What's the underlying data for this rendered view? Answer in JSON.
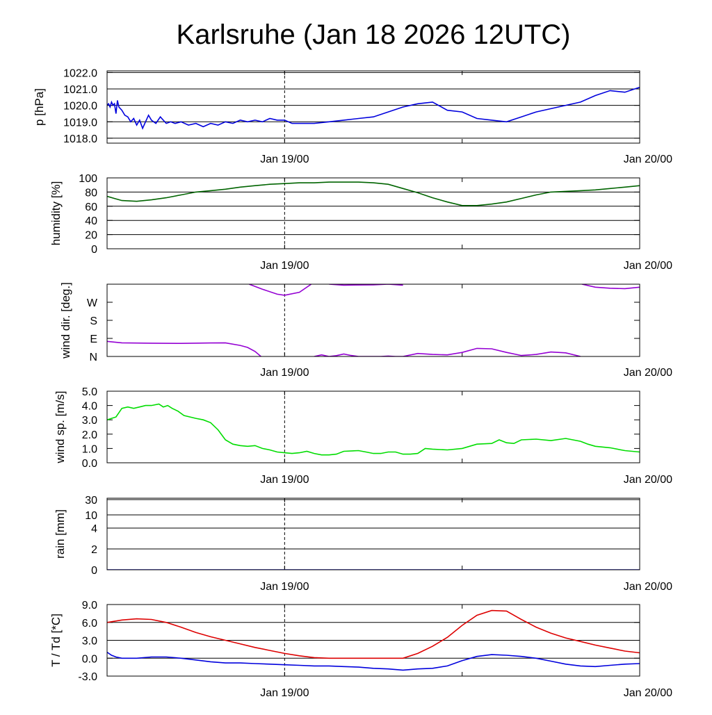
{
  "title": "Karlsruhe (Jan 18 2026 12UTC)",
  "time_axis": {
    "labels": [
      "Jan 19/00",
      "Jan 20/00"
    ],
    "range_hours": [
      0,
      36
    ],
    "label_hours": [
      12,
      36
    ],
    "dashed_marker_hour": 12,
    "minor_tick_hours": [
      24
    ]
  },
  "chart_data": [
    {
      "type": "line",
      "id": "pressure",
      "ylabel": "p [hPa]",
      "ylim": [
        1017.7,
        1022.1
      ],
      "yticks": [
        1018.0,
        1019.0,
        1020.0,
        1021.0,
        1022.0
      ],
      "ytick_labels": [
        "1018.0",
        "1019.0",
        "1020.0",
        "1021.0",
        "1022.0"
      ],
      "grid": true,
      "series": [
        {
          "color": "#0000dd",
          "x": [
            0,
            0.1,
            0.2,
            0.3,
            0.4,
            0.5,
            0.6,
            0.7,
            0.8,
            1.0,
            1.2,
            1.4,
            1.6,
            1.8,
            2.0,
            2.2,
            2.4,
            2.6,
            2.8,
            3.0,
            3.3,
            3.6,
            4.0,
            4.3,
            4.6,
            5.0,
            5.5,
            6.0,
            6.5,
            7.0,
            7.5,
            8.0,
            8.5,
            9.0,
            9.5,
            10.0,
            10.5,
            11.0,
            11.5,
            12.0,
            12.5,
            13.0,
            14.0,
            15.0,
            16.0,
            17.0,
            18.0,
            19.0,
            20.0,
            21.0,
            22.0,
            23.0,
            24.0,
            25.0,
            26.0,
            27.0,
            28.0,
            29.0,
            30.0,
            31.0,
            32.0,
            33.0,
            34.0,
            35.0,
            36.0
          ],
          "y": [
            1020.0,
            1020.1,
            1019.9,
            1020.2,
            1020.0,
            1020.1,
            1019.5,
            1020.3,
            1019.9,
            1019.7,
            1019.4,
            1019.3,
            1019.0,
            1019.2,
            1018.8,
            1019.1,
            1018.6,
            1019.0,
            1019.4,
            1019.1,
            1018.9,
            1019.3,
            1018.9,
            1019.0,
            1018.9,
            1019.0,
            1018.8,
            1018.9,
            1018.7,
            1018.9,
            1018.8,
            1019.0,
            1018.9,
            1019.1,
            1019.0,
            1019.1,
            1019.0,
            1019.2,
            1019.1,
            1019.1,
            1018.9,
            1018.9,
            1018.9,
            1019.0,
            1019.1,
            1019.2,
            1019.3,
            1019.6,
            1019.9,
            1020.1,
            1020.2,
            1019.7,
            1019.6,
            1019.2,
            1019.1,
            1019.0,
            1019.3,
            1019.6,
            1019.8,
            1020.0,
            1020.2,
            1020.6,
            1020.9,
            1020.8,
            1021.1
          ]
        }
      ]
    },
    {
      "type": "line",
      "id": "humidity",
      "ylabel": "humidity [%]",
      "ylim": [
        0,
        100
      ],
      "yticks": [
        0,
        20,
        40,
        60,
        80,
        100
      ],
      "ytick_labels": [
        "0",
        "20",
        "40",
        "60",
        "80",
        "100"
      ],
      "grid": true,
      "series": [
        {
          "color": "#006400",
          "x": [
            0,
            0.5,
            1,
            2,
            3,
            4,
            5,
            6,
            7,
            8,
            9,
            10,
            11,
            12,
            13,
            14,
            15,
            16,
            17,
            18,
            19,
            20,
            21,
            22,
            23,
            24,
            25,
            26,
            27,
            28,
            29,
            30,
            31,
            32,
            33,
            34,
            35,
            36
          ],
          "y": [
            74,
            71,
            68,
            67,
            69,
            72,
            76,
            80,
            82,
            84,
            87,
            89,
            91,
            92,
            93,
            93,
            94,
            94,
            94,
            93,
            91,
            85,
            79,
            72,
            66,
            61,
            61,
            63,
            66,
            71,
            76,
            80,
            81,
            82,
            83,
            85,
            87,
            89
          ]
        }
      ]
    },
    {
      "type": "line",
      "id": "wind_direction",
      "ylabel": "wind dir. [deg.]",
      "ylim": [
        0,
        360
      ],
      "yticks": [
        0,
        90,
        180,
        270
      ],
      "ytick_labels": [
        "N",
        "E",
        "S",
        "W"
      ],
      "grid": false,
      "series": [
        {
          "color": "#9400d3",
          "segments": [
            {
              "x": [
                0,
                1,
                3,
                5,
                7,
                8,
                9,
                9.5,
                10,
                10.4
              ],
              "y": [
                75,
                68,
                66,
                65,
                67,
                68,
                55,
                45,
                25,
                0
              ]
            },
            {
              "x": [
                9.6,
                10.5,
                11.5,
                12,
                13,
                13.8
              ],
              "y": [
                360,
                335,
                310,
                305,
                320,
                360
              ]
            },
            {
              "x": [
                15,
                16,
                18,
                19,
                20
              ],
              "y": [
                360,
                355,
                357,
                360,
                355
              ]
            },
            {
              "x": [
                14,
                14.5,
                15,
                15.5,
                16,
                16.5,
                17,
                18.5,
                19,
                19.5,
                20,
                21,
                22,
                23,
                24,
                25,
                26,
                27,
                28,
                29,
                30,
                31,
                32
              ],
              "y": [
                0,
                8,
                0,
                4,
                12,
                5,
                0,
                0,
                2,
                0,
                0,
                15,
                10,
                8,
                20,
                40,
                38,
                20,
                5,
                10,
                22,
                18,
                0
              ]
            },
            {
              "x": [
                32.1,
                33,
                34,
                35,
                36
              ],
              "y": [
                360,
                345,
                340,
                338,
                345
              ]
            }
          ]
        }
      ]
    },
    {
      "type": "line",
      "id": "wind_speed",
      "ylabel": "wind sp. [m/s]",
      "ylim": [
        0,
        5
      ],
      "yticks": [
        0,
        1,
        2,
        3,
        4,
        5
      ],
      "ytick_labels": [
        "0.0",
        "1.0",
        "2.0",
        "3.0",
        "4.0",
        "5.0"
      ],
      "grid": false,
      "series": [
        {
          "color": "#00dd00",
          "x": [
            0,
            0.3,
            0.6,
            0.8,
            1.0,
            1.4,
            1.8,
            2.2,
            2.6,
            3.0,
            3.5,
            3.8,
            4.1,
            4.4,
            4.8,
            5.2,
            6.0,
            6.5,
            7.0,
            7.5,
            8.0,
            8.5,
            9.0,
            9.5,
            10.0,
            10.5,
            11.0,
            11.5,
            12.0,
            12.5,
            13.0,
            13.5,
            14.0,
            14.5,
            15.0,
            15.5,
            16.0,
            17.0,
            17.5,
            18.0,
            18.5,
            19.0,
            19.5,
            20.0,
            20.5,
            21.0,
            21.5,
            22.0,
            23.0,
            24.0,
            25.0,
            26.0,
            26.5,
            27.0,
            27.5,
            28.0,
            29.0,
            30.0,
            31.0,
            32.0,
            32.5,
            33.0,
            34.0,
            35.0,
            36.0
          ],
          "y": [
            3.0,
            3.1,
            3.2,
            3.5,
            3.8,
            3.9,
            3.8,
            3.9,
            4.0,
            4.0,
            4.1,
            3.9,
            4.0,
            3.8,
            3.6,
            3.3,
            3.1,
            3.0,
            2.8,
            2.3,
            1.6,
            1.3,
            1.2,
            1.15,
            1.2,
            1.0,
            0.9,
            0.75,
            0.7,
            0.65,
            0.7,
            0.8,
            0.65,
            0.55,
            0.55,
            0.6,
            0.8,
            0.85,
            0.75,
            0.65,
            0.65,
            0.75,
            0.75,
            0.6,
            0.6,
            0.65,
            1.0,
            0.95,
            0.9,
            1.0,
            1.3,
            1.35,
            1.6,
            1.4,
            1.35,
            1.6,
            1.65,
            1.55,
            1.7,
            1.5,
            1.3,
            1.15,
            1.05,
            0.85,
            0.75
          ]
        }
      ]
    },
    {
      "type": "line",
      "id": "rain",
      "ylabel": "rain [mm]",
      "scale": "nonlinear",
      "yticks": [
        0,
        2,
        4,
        10,
        30
      ],
      "ytick_labels": [
        "0",
        "2",
        "4",
        "10",
        "30"
      ],
      "grid": true,
      "series": [
        {
          "color": "#0000dd",
          "x": [
            0,
            36
          ],
          "y": [
            0,
            0
          ]
        }
      ]
    },
    {
      "type": "line",
      "id": "temperature",
      "ylabel": "T / Td [*C]",
      "ylim": [
        -3.0,
        9.0
      ],
      "yticks": [
        -3.0,
        0.0,
        3.0,
        6.0,
        9.0
      ],
      "ytick_labels": [
        "-3.0",
        "0.0",
        "3.0",
        "6.0",
        "9.0"
      ],
      "grid": true,
      "series": [
        {
          "color": "#dd0000",
          "x": [
            0,
            1,
            2,
            3,
            4,
            5,
            6,
            7,
            8,
            9,
            10,
            11,
            12,
            13,
            14,
            15,
            16,
            17,
            18,
            19,
            20,
            21,
            22,
            23,
            24,
            25,
            26,
            27,
            28,
            29,
            30,
            31,
            32,
            33,
            34,
            35,
            36
          ],
          "y": [
            6.0,
            6.4,
            6.6,
            6.5,
            6.0,
            5.2,
            4.3,
            3.6,
            3.0,
            2.4,
            1.8,
            1.3,
            0.8,
            0.4,
            0.1,
            0.0,
            0.0,
            0.0,
            0.0,
            0.0,
            0.0,
            0.8,
            2.0,
            3.5,
            5.5,
            7.2,
            8.0,
            7.9,
            6.5,
            5.2,
            4.2,
            3.4,
            2.8,
            2.2,
            1.7,
            1.2,
            0.9
          ]
        },
        {
          "color": "#0000dd",
          "x": [
            0,
            0.3,
            0.6,
            1,
            2,
            3,
            4,
            5,
            6,
            7,
            8,
            9,
            10,
            11,
            12,
            13,
            14,
            15,
            16,
            17,
            18,
            19,
            20,
            21,
            22,
            23,
            24,
            25,
            26,
            27,
            28,
            29,
            30,
            31,
            32,
            33,
            34,
            35,
            36
          ],
          "y": [
            1.0,
            0.5,
            0.2,
            0.0,
            0.0,
            0.2,
            0.2,
            0.0,
            -0.3,
            -0.6,
            -0.8,
            -0.8,
            -0.9,
            -1.0,
            -1.1,
            -1.2,
            -1.3,
            -1.3,
            -1.4,
            -1.5,
            -1.7,
            -1.8,
            -2.0,
            -1.8,
            -1.7,
            -1.3,
            -0.4,
            0.3,
            0.6,
            0.5,
            0.3,
            0.0,
            -0.5,
            -1.0,
            -1.3,
            -1.4,
            -1.2,
            -1.0,
            -0.9
          ]
        }
      ]
    }
  ]
}
